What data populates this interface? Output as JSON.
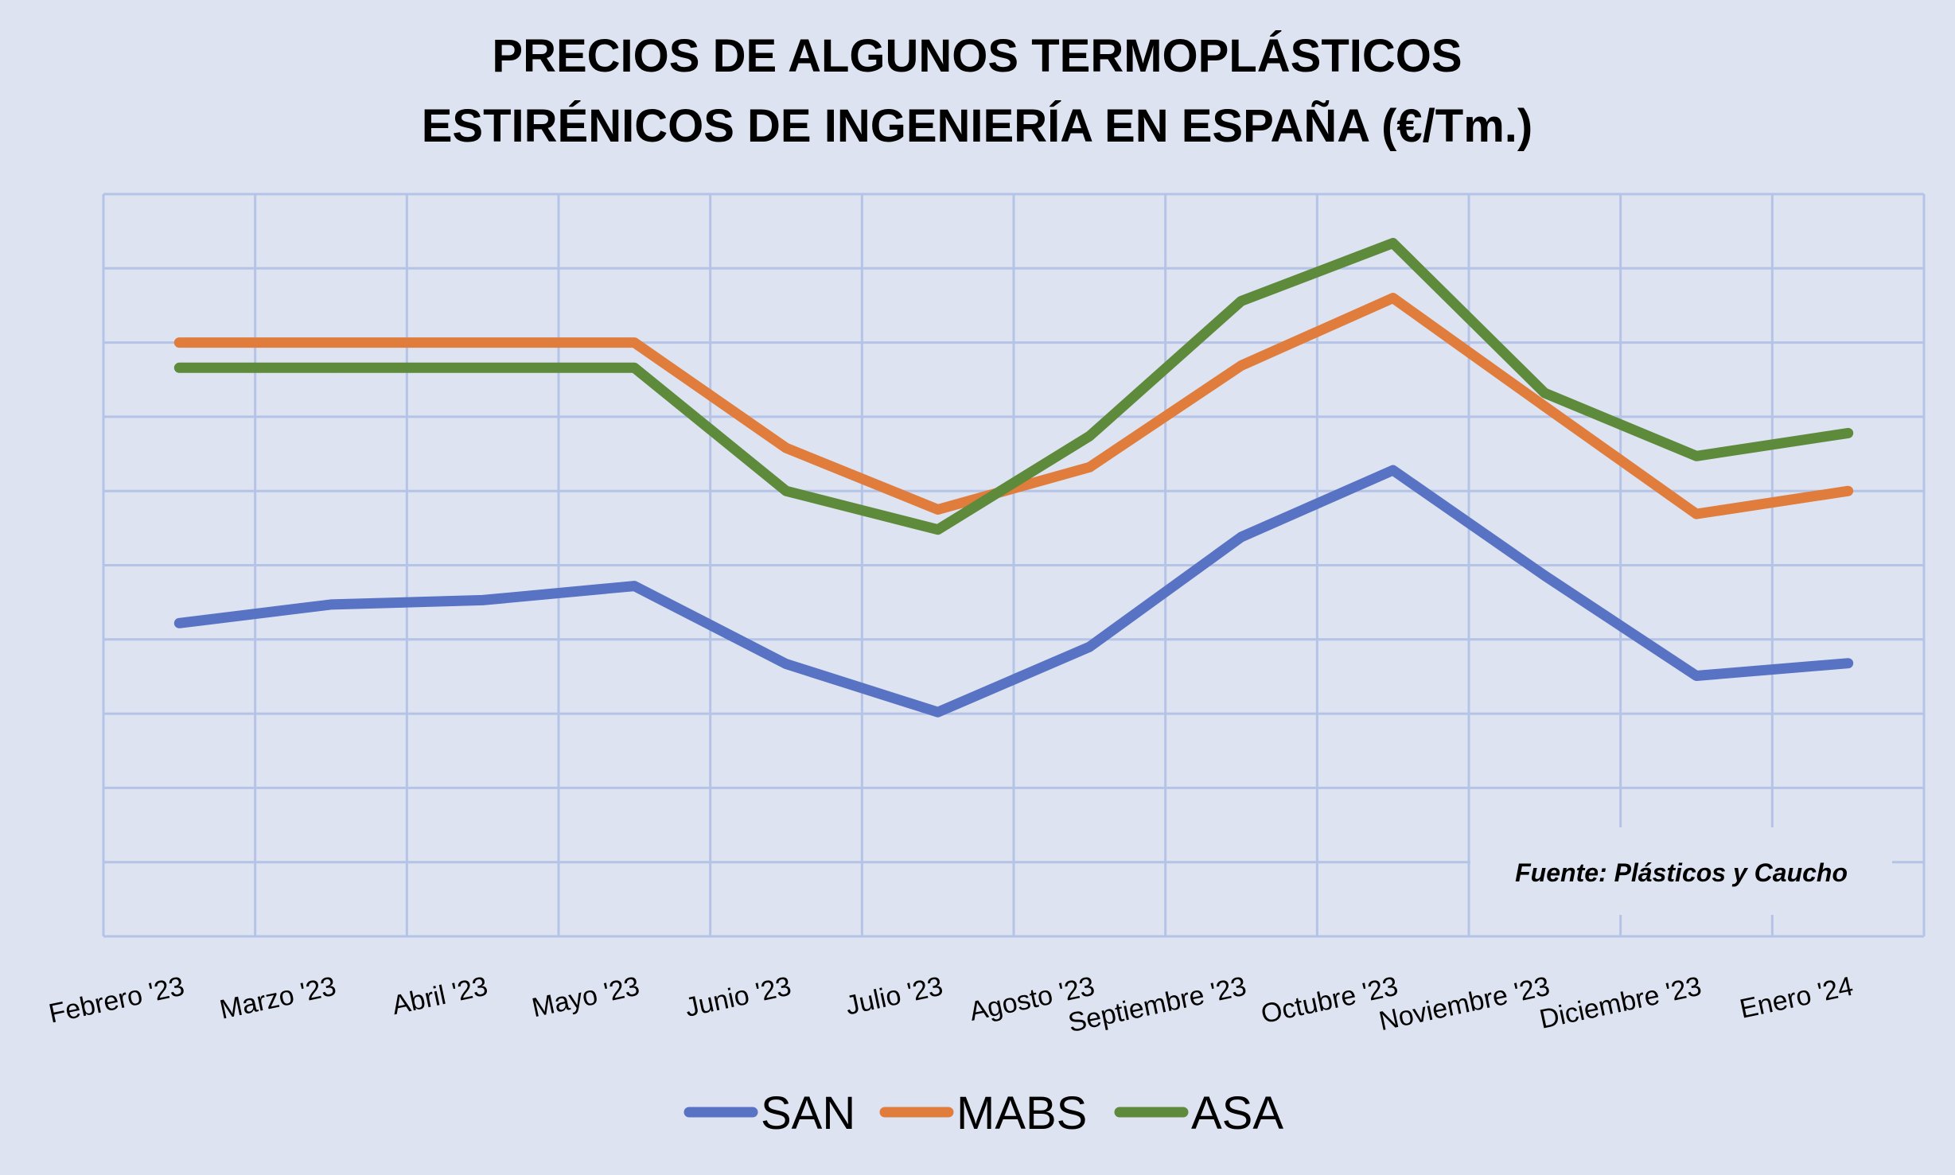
{
  "chart_data": {
    "type": "line",
    "title_lines": [
      "PRECIOS DE ALGUNOS TERMOPLÁSTICOS",
      "ESTIRÉNICOS DE INGENIERÍA EN ESPAÑA (€/Tm.)"
    ],
    "categories": [
      "Febrero '23",
      "Marzo '23",
      "Abril '23",
      "Mayo '23",
      "Junio '23",
      "Julio '23",
      "Agosto '23",
      "Septiembre '23",
      "Octubre '23",
      "Noviembre '23",
      "Diciembre '23",
      "Enero '24"
    ],
    "series": [
      {
        "name": "SAN",
        "color": "#5872c4",
        "values": [
          4.22,
          4.47,
          4.53,
          4.72,
          3.67,
          3.02,
          3.9,
          5.38,
          6.28,
          4.86,
          3.51,
          3.68
        ]
      },
      {
        "name": "MABS",
        "color": "#e07d3c",
        "values": [
          8.0,
          8.0,
          8.0,
          8.0,
          6.58,
          5.75,
          6.32,
          7.69,
          8.6,
          7.14,
          5.69,
          6.0
        ]
      },
      {
        "name": "ASA",
        "color": "#5e8a3b",
        "values": [
          7.66,
          7.66,
          7.66,
          7.66,
          6.0,
          5.48,
          6.74,
          8.56,
          9.34,
          7.32,
          6.47,
          6.78
        ]
      }
    ],
    "ylim": [
      0,
      10
    ],
    "y_tick_labels_visible": false,
    "grid": true,
    "legend_position": "bottom",
    "source_note": "Fuente: Plásticos y Caucho"
  }
}
